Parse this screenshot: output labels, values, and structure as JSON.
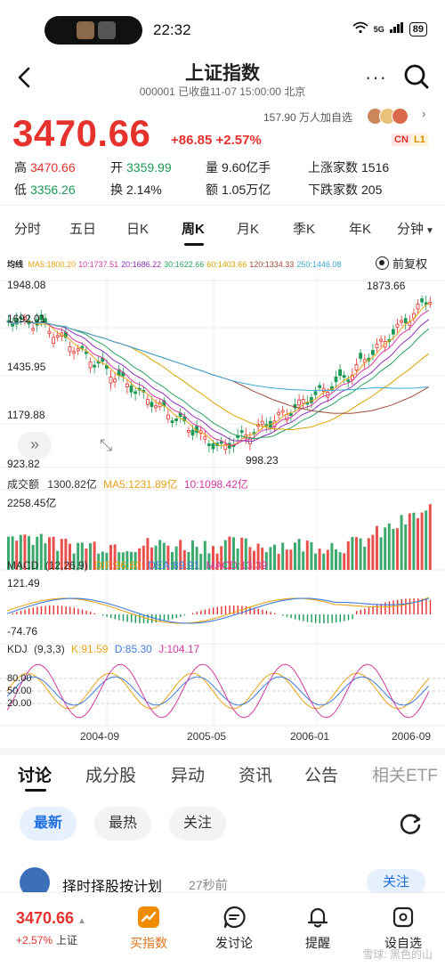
{
  "status_bar": {
    "time": "22:32",
    "battery": "89",
    "signal": "5G"
  },
  "header": {
    "title": "上证指数",
    "subtitle": "000001 已收盘11-07 15:00:00 北京"
  },
  "quote": {
    "price": "3470.66",
    "change": "+86.85 +2.57%",
    "followers": "157.90 万人加自选",
    "badge_cn": "CN",
    "badge_l1": "L1"
  },
  "stats": [
    {
      "label": "高",
      "value": "3470.66",
      "color": "red"
    },
    {
      "label": "开",
      "value": "3359.99",
      "color": "green"
    },
    {
      "label": "量",
      "value": "9.60亿手",
      "color": "plain"
    },
    {
      "label": "上涨家数",
      "value": "1516",
      "color": "plain"
    },
    {
      "label": "低",
      "value": "3356.26",
      "color": "green"
    },
    {
      "label": "换",
      "value": "2.14%",
      "color": "plain"
    },
    {
      "label": "额",
      "value": "1.05万亿",
      "color": "plain"
    },
    {
      "label": "下跌家数",
      "value": "205",
      "color": "plain"
    }
  ],
  "period_tabs": [
    "分时",
    "五日",
    "日K",
    "周K",
    "月K",
    "季K",
    "年K",
    "分钟"
  ],
  "period_active": "周K",
  "ma_legend": {
    "prefix": "均线",
    "items": [
      {
        "text": "MA5:1800.20",
        "color": "#e8a317"
      },
      {
        "text": "10:1737.51",
        "color": "#d23aa0"
      },
      {
        "text": "20:1686.22",
        "color": "#8e2fb8"
      },
      {
        "text": "30:1622.66",
        "color": "#27a35f"
      },
      {
        "text": "60:1403.66",
        "color": "#d9a400"
      },
      {
        "text": "120:1334.33",
        "color": "#a04a3a"
      },
      {
        "text": "250:1446.08",
        "color": "#39a8d6"
      }
    ]
  },
  "restore_label": "前复权",
  "price_axis": [
    "1948.08",
    "1692.01",
    "1435.95",
    "1179.88",
    "923.82"
  ],
  "annotations": {
    "high": "1873.66",
    "low": "998.23"
  },
  "volume_legend": {
    "label": "成交额",
    "value": "1300.82亿",
    "ma5": "MA5:1231.89亿",
    "ma10": "10:1098.42亿",
    "axis_top": "2258.45亿"
  },
  "macd_legend": {
    "label": "MACD",
    "params": "(12,26,9)",
    "dif": "DIF:96.60",
    "dea": "DEA:89.91",
    "macd": "MACD:13.39",
    "axis_top": "121.49",
    "axis_bottom": "-74.76"
  },
  "kdj_legend": {
    "label": "KDJ",
    "params": "(9,3,3)",
    "k": "K:91.59",
    "d": "D:85.30",
    "j": "J:104.17",
    "levels": [
      "80.00",
      "50.00",
      "20.00"
    ]
  },
  "date_axis": [
    "2004-09",
    "2005-05",
    "2006-01",
    "2006-09"
  ],
  "discuss_tabs": [
    "讨论",
    "成分股",
    "异动",
    "资讯",
    "公告",
    "相关ETF"
  ],
  "discuss_active": "讨论",
  "chips": [
    "最新",
    "最热",
    "关注"
  ],
  "chip_active": "最新",
  "post": {
    "user": "择时择股按计划",
    "time": "27秒前",
    "follow": "关注"
  },
  "bottom_bar": {
    "price": "3470.66",
    "change": "+2.57%",
    "name": "上证",
    "items": [
      "买指数",
      "发讨论",
      "提醒",
      "设自选"
    ]
  },
  "watermark": "雪球: 黑色的山",
  "colors": {
    "up": "#e5322d",
    "down": "#1a9a55",
    "accent": "#1f6fe0",
    "buy_icon": "#f08c00"
  }
}
